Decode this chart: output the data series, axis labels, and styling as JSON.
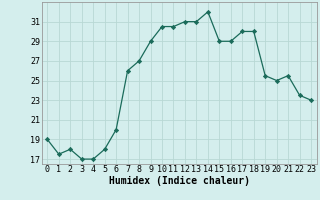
{
  "x": [
    0,
    1,
    2,
    3,
    4,
    5,
    6,
    7,
    8,
    9,
    10,
    11,
    12,
    13,
    14,
    15,
    16,
    17,
    18,
    19,
    20,
    21,
    22,
    23
  ],
  "y": [
    19,
    17.5,
    18,
    17,
    17,
    18,
    20,
    26,
    27,
    29,
    30.5,
    30.5,
    31,
    31,
    32,
    29,
    29,
    30,
    30,
    25.5,
    25,
    25.5,
    23.5,
    23
  ],
  "xlabel": "Humidex (Indice chaleur)",
  "ylim": [
    16.5,
    33
  ],
  "yticks": [
    17,
    19,
    21,
    23,
    25,
    27,
    29,
    31
  ],
  "xticks": [
    0,
    1,
    2,
    3,
    4,
    5,
    6,
    7,
    8,
    9,
    10,
    11,
    12,
    13,
    14,
    15,
    16,
    17,
    18,
    19,
    20,
    21,
    22,
    23
  ],
  "line_color": "#1a6b5a",
  "marker_color": "#1a6b5a",
  "bg_color": "#d4eeed",
  "grid_color": "#b8d8d4",
  "axis_fontsize": 6.5,
  "tick_fontsize": 6,
  "xlabel_fontsize": 7
}
